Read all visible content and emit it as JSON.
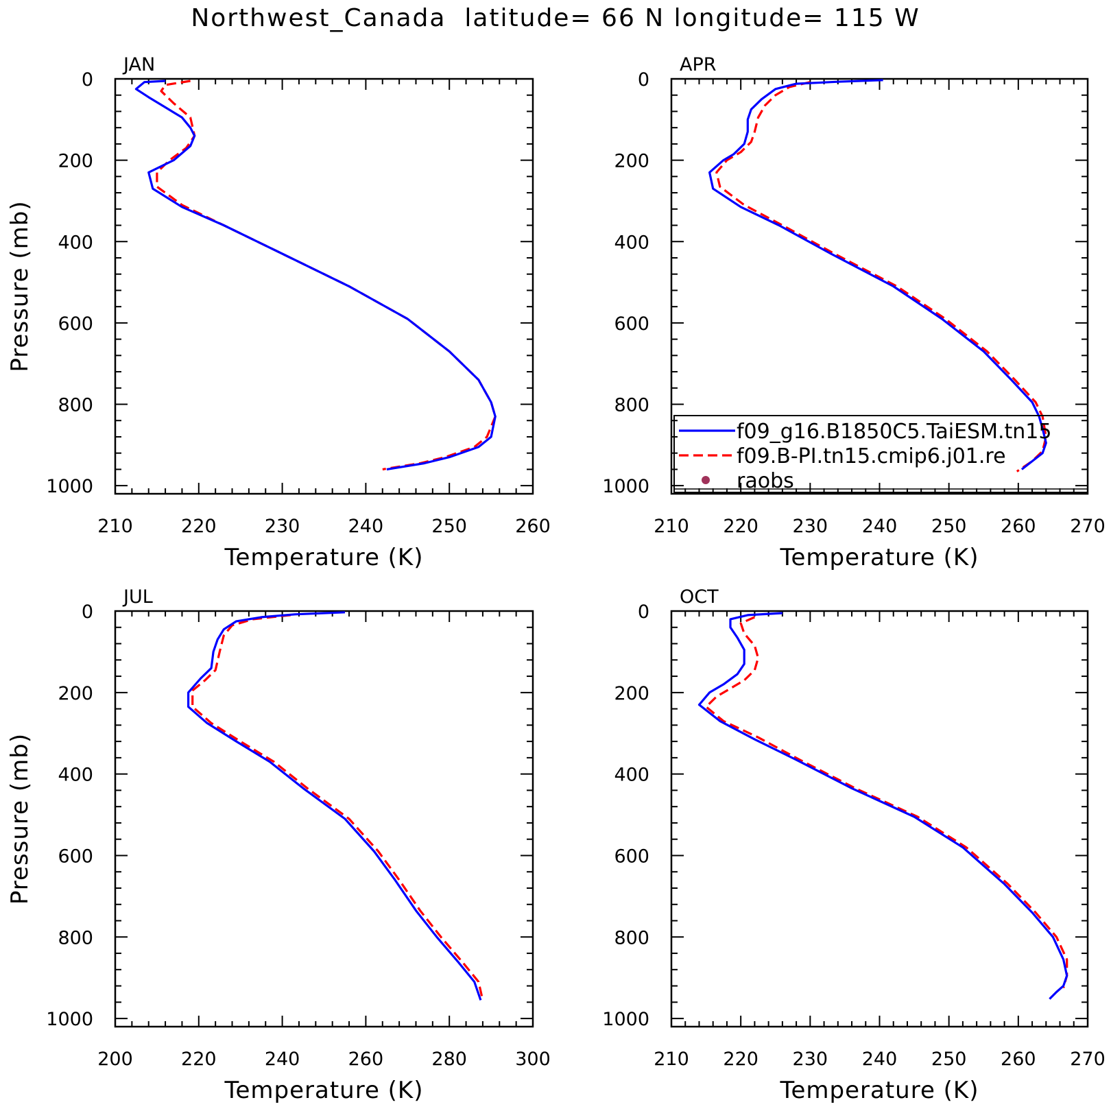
{
  "title": "Northwest_Canada  latitude= 66 N longitude= 115 W",
  "colors": {
    "model1": "#0000ff",
    "model2": "#ff0000",
    "raobs": "#a0325a"
  },
  "legend": {
    "entries": [
      {
        "label": "f09_g16.B1850C5.TaiESM.tn15",
        "style": "solid",
        "color": "#0000ff"
      },
      {
        "label": "f09.B-PI.tn15.cmip6.j01.re",
        "style": "dashed",
        "color": "#ff0000"
      },
      {
        "label": "raobs",
        "style": "dot",
        "color": "#a0325a"
      }
    ],
    "placement": "lower-right of APR panel"
  },
  "chart_data": [
    {
      "type": "line",
      "panel_label": "JAN",
      "xlabel": "Temperature (K)",
      "ylabel": "Pressure (mb)",
      "xlim": [
        210,
        260
      ],
      "xticks": [
        210,
        220,
        230,
        240,
        250,
        260
      ],
      "ylim": [
        1020,
        0
      ],
      "yticks": [
        0,
        200,
        400,
        600,
        800,
        1000
      ],
      "grid": false,
      "series": [
        {
          "name": "f09_g16.B1850C5.TaiESM.tn15",
          "style": "solid",
          "points": [
            [
              216,
              5
            ],
            [
              213.5,
              8
            ],
            [
              212.5,
              25
            ],
            [
              214,
              45
            ],
            [
              216,
              70
            ],
            [
              218,
              95
            ],
            [
              219,
              120
            ],
            [
              219.5,
              140
            ],
            [
              219,
              165
            ],
            [
              217,
              200
            ],
            [
              214,
              230
            ],
            [
              214.5,
              270
            ],
            [
              218,
              315
            ],
            [
              223,
              360
            ],
            [
              230,
              430
            ],
            [
              238,
              510
            ],
            [
              245,
              590
            ],
            [
              250,
              670
            ],
            [
              253.5,
              740
            ],
            [
              255,
              795
            ],
            [
              255.5,
              830
            ],
            [
              255,
              880
            ],
            [
              253.5,
              905
            ],
            [
              250,
              930
            ],
            [
              247,
              945
            ],
            [
              242.5,
              960
            ]
          ]
        },
        {
          "name": "f09.B-PI.tn15.cmip6.j01.re",
          "style": "dashed",
          "points": [
            [
              219,
              5
            ],
            [
              216,
              15
            ],
            [
              215.5,
              30
            ],
            [
              217,
              60
            ],
            [
              219,
              95
            ],
            [
              219.5,
              140
            ],
            [
              218.5,
              170
            ],
            [
              216.5,
              200
            ],
            [
              215,
              230
            ],
            [
              215,
              265
            ],
            [
              218,
              310
            ],
            [
              223,
              360
            ],
            [
              230,
              430
            ],
            [
              238,
              510
            ],
            [
              245,
              590
            ],
            [
              250,
              670
            ],
            [
              253.5,
              740
            ],
            [
              255,
              795
            ],
            [
              255.5,
              830
            ],
            [
              254.5,
              880
            ],
            [
              253,
              905
            ],
            [
              249.5,
              930
            ],
            [
              246.5,
              945
            ],
            [
              242,
              960
            ]
          ]
        }
      ]
    },
    {
      "type": "line",
      "panel_label": "APR",
      "xlabel": "Temperature (K)",
      "ylabel": "",
      "xlim": [
        210,
        270
      ],
      "xticks": [
        210,
        220,
        230,
        240,
        250,
        260,
        270
      ],
      "ylim": [
        1020,
        0
      ],
      "yticks": [
        0,
        200,
        400,
        600,
        800,
        1000
      ],
      "grid": false,
      "series": [
        {
          "name": "f09_g16.B1850C5.TaiESM.tn15",
          "style": "solid",
          "points": [
            [
              240.5,
              3
            ],
            [
              234,
              7
            ],
            [
              228,
              12
            ],
            [
              225,
              25
            ],
            [
              223,
              50
            ],
            [
              221.5,
              75
            ],
            [
              221,
              100
            ],
            [
              221,
              130
            ],
            [
              220.5,
              160
            ],
            [
              219,
              185
            ],
            [
              217.5,
              200
            ],
            [
              215.5,
              230
            ],
            [
              216,
              270
            ],
            [
              220,
              315
            ],
            [
              225.5,
              360
            ],
            [
              233,
              430
            ],
            [
              242,
              510
            ],
            [
              249,
              590
            ],
            [
              255,
              670
            ],
            [
              259,
              740
            ],
            [
              262,
              795
            ],
            [
              263,
              830
            ],
            [
              263.5,
              860
            ],
            [
              264,
              895
            ],
            [
              263.5,
              920
            ],
            [
              262,
              940
            ],
            [
              260.5,
              960
            ]
          ]
        },
        {
          "name": "f09.B-PI.tn15.cmip6.j01.re",
          "style": "dashed",
          "points": [
            [
              230,
              8
            ],
            [
              227,
              20
            ],
            [
              225,
              40
            ],
            [
              223.5,
              65
            ],
            [
              222.5,
              95
            ],
            [
              222,
              130
            ],
            [
              221.5,
              155
            ],
            [
              220,
              180
            ],
            [
              218,
              200
            ],
            [
              216.5,
              230
            ],
            [
              217,
              265
            ],
            [
              220.5,
              310
            ],
            [
              226,
              360
            ],
            [
              233.5,
              430
            ],
            [
              242.5,
              510
            ],
            [
              249.5,
              590
            ],
            [
              255.5,
              670
            ],
            [
              259.5,
              740
            ],
            [
              262.5,
              795
            ],
            [
              263.5,
              830
            ],
            [
              264,
              880
            ],
            [
              263.5,
              915
            ],
            [
              262,
              940
            ],
            [
              259.8,
              965
            ]
          ]
        }
      ]
    },
    {
      "type": "line",
      "panel_label": "JUL",
      "xlabel": "Temperature (K)",
      "ylabel": "Pressure (mb)",
      "xlim": [
        200,
        300
      ],
      "xticks": [
        200,
        220,
        240,
        260,
        280,
        300
      ],
      "ylim": [
        1020,
        0
      ],
      "yticks": [
        0,
        200,
        400,
        600,
        800,
        1000
      ],
      "grid": false,
      "series": [
        {
          "name": "f09_g16.B1850C5.TaiESM.tn15",
          "style": "solid",
          "points": [
            [
              255,
              3
            ],
            [
              243,
              8
            ],
            [
              235,
              15
            ],
            [
              229,
              25
            ],
            [
              226,
              45
            ],
            [
              224.5,
              70
            ],
            [
              223.5,
              100
            ],
            [
              223,
              140
            ],
            [
              220.5,
              165
            ],
            [
              217.5,
              200
            ],
            [
              217.5,
              235
            ],
            [
              222,
              275
            ],
            [
              229,
              320
            ],
            [
              237,
              370
            ],
            [
              245,
              435
            ],
            [
              255,
              510
            ],
            [
              262,
              590
            ],
            [
              267,
              660
            ],
            [
              272,
              735
            ],
            [
              277,
              800
            ],
            [
              282,
              860
            ],
            [
              286,
              910
            ],
            [
              287.5,
              955
            ]
          ]
        },
        {
          "name": "f09.B-PI.tn15.cmip6.j01.re",
          "style": "dashed",
          "points": [
            [
              242,
              10
            ],
            [
              233,
              20
            ],
            [
              228,
              35
            ],
            [
              226,
              60
            ],
            [
              225,
              100
            ],
            [
              224,
              145
            ],
            [
              221.5,
              170
            ],
            [
              218.5,
              195
            ],
            [
              218.5,
              235
            ],
            [
              223,
              275
            ],
            [
              230,
              320
            ],
            [
              238,
              370
            ],
            [
              246,
              435
            ],
            [
              256,
              510
            ],
            [
              263,
              590
            ],
            [
              268,
              660
            ],
            [
              273,
              735
            ],
            [
              278,
              800
            ],
            [
              283,
              860
            ],
            [
              287,
              910
            ],
            [
              288,
              955
            ]
          ]
        }
      ]
    },
    {
      "type": "line",
      "panel_label": "OCT",
      "xlabel": "Temperature (K)",
      "ylabel": "",
      "xlim": [
        210,
        270
      ],
      "xticks": [
        210,
        220,
        230,
        240,
        250,
        260,
        270
      ],
      "ylim": [
        1020,
        0
      ],
      "yticks": [
        0,
        200,
        400,
        600,
        800,
        1000
      ],
      "grid": false,
      "series": [
        {
          "name": "f09_g16.B1850C5.TaiESM.tn15",
          "style": "solid",
          "points": [
            [
              226,
              5
            ],
            [
              221,
              10
            ],
            [
              218.5,
              20
            ],
            [
              218.5,
              40
            ],
            [
              219.5,
              65
            ],
            [
              220.5,
              95
            ],
            [
              220.5,
              130
            ],
            [
              219.5,
              155
            ],
            [
              217.5,
              180
            ],
            [
              215.5,
              200
            ],
            [
              214,
              230
            ],
            [
              217,
              270
            ],
            [
              222,
              315
            ],
            [
              228,
              365
            ],
            [
              236,
              435
            ],
            [
              245,
              505
            ],
            [
              252,
              580
            ],
            [
              258,
              670
            ],
            [
              262,
              740
            ],
            [
              265,
              800
            ],
            [
              266.5,
              855
            ],
            [
              267,
              895
            ],
            [
              266.5,
              920
            ],
            [
              265.5,
              935
            ],
            [
              264.5,
              952
            ]
          ]
        },
        {
          "name": "f09.B-PI.tn15.cmip6.j01.re",
          "style": "dashed",
          "points": [
            [
              222,
              15
            ],
            [
              220,
              30
            ],
            [
              220.5,
              55
            ],
            [
              222,
              85
            ],
            [
              222.5,
              115
            ],
            [
              222,
              145
            ],
            [
              220.5,
              170
            ],
            [
              218.5,
              190
            ],
            [
              216.5,
              210
            ],
            [
              215,
              235
            ],
            [
              217.5,
              270
            ],
            [
              222.5,
              310
            ],
            [
              228.5,
              365
            ],
            [
              236.5,
              435
            ],
            [
              245.5,
              505
            ],
            [
              252.5,
              580
            ],
            [
              258.5,
              670
            ],
            [
              262.5,
              740
            ],
            [
              265.5,
              800
            ],
            [
              267,
              855
            ],
            [
              267,
              895
            ],
            [
              266.5,
              925
            ]
          ]
        }
      ]
    }
  ]
}
